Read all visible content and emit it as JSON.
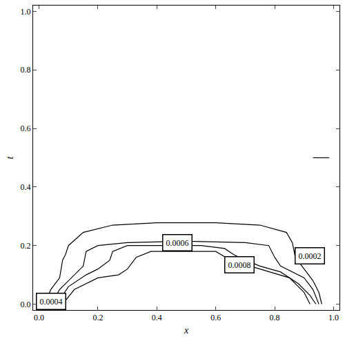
{
  "chart_data": {
    "type": "line",
    "x_label": "x",
    "y_label": "t",
    "xlim": [
      -0.02,
      1.02
    ],
    "ylim": [
      -0.02,
      1.02
    ],
    "xticks": [
      {
        "value": 0,
        "label": "0.0"
      },
      0.2,
      0.4,
      0.6,
      0.8,
      {
        "value": 1,
        "label": "1.0"
      }
    ],
    "yticks": [
      {
        "value": 0,
        "label": "0.0"
      },
      0.2,
      0.4,
      0.6,
      0.8,
      {
        "value": 1,
        "label": "1.0"
      }
    ],
    "grid": false,
    "series": [
      {
        "color": "#000000",
        "x": [
          0.02,
          0.04,
          0.07,
          0.08,
          0.09,
          0.1,
          0.15,
          0.25,
          0.4,
          0.6,
          0.75,
          0.84,
          0.86,
          0.87,
          0.9,
          0.93,
          0.95,
          0.96
        ],
        "values": [
          0.0,
          0.05,
          0.09,
          0.15,
          0.17,
          0.2,
          0.245,
          0.27,
          0.278,
          0.278,
          0.27,
          0.245,
          0.21,
          0.16,
          0.12,
          0.08,
          0.04,
          0.0
        ]
      },
      {
        "color": "#000000",
        "x": [
          0.04,
          0.07,
          0.12,
          0.15,
          0.16,
          0.2,
          0.3,
          0.5,
          0.7,
          0.78,
          0.8,
          0.82,
          0.9,
          0.93,
          0.95
        ],
        "values": [
          0.0,
          0.05,
          0.1,
          0.13,
          0.18,
          0.2,
          0.21,
          0.215,
          0.21,
          0.2,
          0.16,
          0.13,
          0.09,
          0.05,
          0.0
        ]
      },
      {
        "color": "#000000",
        "x": [
          0.06,
          0.1,
          0.16,
          0.2,
          0.24,
          0.25,
          0.3,
          0.4,
          0.55,
          0.63,
          0.66,
          0.7,
          0.75,
          0.82,
          0.88,
          0.92,
          0.94
        ],
        "values": [
          0.0,
          0.06,
          0.1,
          0.12,
          0.15,
          0.18,
          0.2,
          0.2,
          0.2,
          0.19,
          0.17,
          0.15,
          0.13,
          0.11,
          0.07,
          0.03,
          0.0
        ]
      },
      {
        "color": "#000000",
        "x": [
          0.08,
          0.12,
          0.2,
          0.27,
          0.3,
          0.33,
          0.38,
          0.5,
          0.6,
          0.65,
          0.75,
          0.85,
          0.9,
          0.92
        ],
        "values": [
          0.0,
          0.05,
          0.09,
          0.1,
          0.12,
          0.16,
          0.18,
          0.18,
          0.18,
          0.15,
          0.12,
          0.09,
          0.04,
          0.0
        ]
      },
      {
        "color": "#000000",
        "x": [
          0.93,
          0.985
        ],
        "values": [
          0.5,
          0.5
        ]
      }
    ],
    "annotations": [
      {
        "text": "0.0004",
        "x": 0.04,
        "y": 0.01
      },
      {
        "text": "0.0006",
        "x": 0.47,
        "y": 0.21
      },
      {
        "text": "0.0008",
        "x": 0.68,
        "y": 0.135
      },
      {
        "text": "0.0002",
        "x": 0.92,
        "y": 0.165
      }
    ]
  }
}
